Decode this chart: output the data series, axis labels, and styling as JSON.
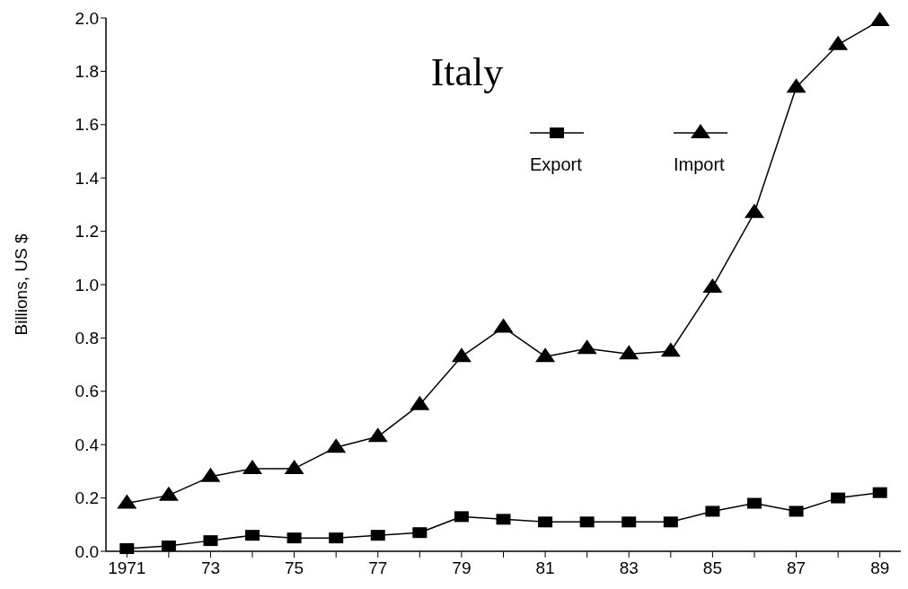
{
  "chart_data": {
    "type": "line",
    "title": "Italy",
    "ylabel": "Billions, US $",
    "x": [
      1971,
      1972,
      1973,
      1974,
      1975,
      1976,
      1977,
      1978,
      1979,
      1980,
      1981,
      1982,
      1983,
      1984,
      1985,
      1986,
      1987,
      1988,
      1989
    ],
    "series": [
      {
        "name": "Export",
        "color": "#000000",
        "marker": "square",
        "values": [
          0.01,
          0.02,
          0.04,
          0.06,
          0.05,
          0.05,
          0.06,
          0.07,
          0.13,
          0.12,
          0.11,
          0.11,
          0.11,
          0.11,
          0.15,
          0.18,
          0.15,
          0.2,
          0.22
        ]
      },
      {
        "name": "Import",
        "color": "#000000",
        "marker": "triangle",
        "values": [
          0.18,
          0.21,
          0.28,
          0.31,
          0.31,
          0.39,
          0.43,
          0.55,
          0.73,
          0.84,
          0.73,
          0.76,
          0.74,
          0.75,
          0.99,
          1.27,
          1.74,
          1.9,
          1.99
        ]
      }
    ],
    "xlim": [
      1970.5,
      1989.5
    ],
    "xticks": [
      {
        "value": 1971,
        "label": "1971"
      },
      {
        "value": 1972,
        "label": null
      },
      {
        "value": 1973,
        "label": "73"
      },
      {
        "value": 1974,
        "label": null
      },
      {
        "value": 1975,
        "label": "75"
      },
      {
        "value": 1976,
        "label": null
      },
      {
        "value": 1977,
        "label": "77"
      },
      {
        "value": 1978,
        "label": null
      },
      {
        "value": 1979,
        "label": "79"
      },
      {
        "value": 1980,
        "label": null
      },
      {
        "value": 1981,
        "label": "81"
      },
      {
        "value": 1982,
        "label": null
      },
      {
        "value": 1983,
        "label": "83"
      },
      {
        "value": 1984,
        "label": null
      },
      {
        "value": 1985,
        "label": "85"
      },
      {
        "value": 1986,
        "label": null
      },
      {
        "value": 1987,
        "label": "87"
      },
      {
        "value": 1988,
        "label": null
      },
      {
        "value": 1989,
        "label": "89"
      }
    ],
    "ylim": [
      0,
      2
    ],
    "yticks": [
      {
        "value": 0,
        "label": "0.0"
      },
      {
        "value": 0.2,
        "label": "0.2"
      },
      {
        "value": 0.4,
        "label": "0.4"
      },
      {
        "value": 0.6,
        "label": "0.6"
      },
      {
        "value": 0.8,
        "label": "0.8"
      },
      {
        "value": 1,
        "label": "1.0"
      },
      {
        "value": 1.2,
        "label": "1.2"
      },
      {
        "value": 1.4,
        "label": "1.4"
      },
      {
        "value": 1.6,
        "label": "1.6"
      },
      {
        "value": 1.8,
        "label": "1.8"
      },
      {
        "value": 2,
        "label": "2.0"
      }
    ],
    "grid": false,
    "legend": "top",
    "line_style": "solid"
  }
}
